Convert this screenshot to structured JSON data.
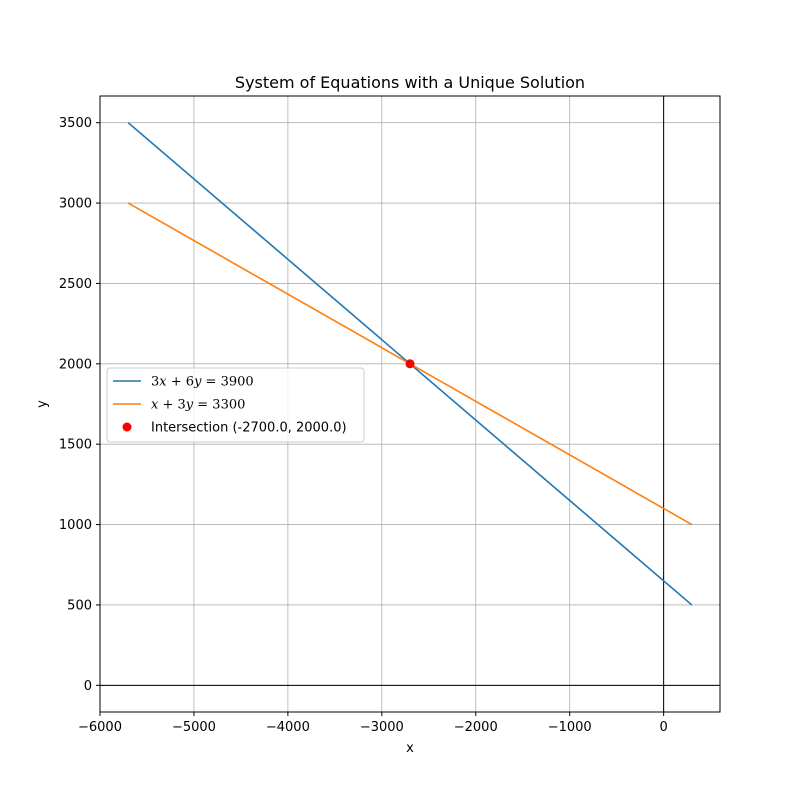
{
  "chart_data": {
    "type": "line",
    "title": "System of Equations with a Unique Solution",
    "xlabel": "x",
    "ylabel": "y",
    "xlim": [
      -6000,
      600
    ],
    "ylim": [
      -166,
      3666
    ],
    "xticks": [
      -6000,
      -5000,
      -4000,
      -3000,
      -2000,
      -1000,
      0
    ],
    "yticks": [
      0,
      500,
      1000,
      1500,
      2000,
      2500,
      3000,
      3500
    ],
    "grid": true,
    "legend_position": "center-left",
    "series": [
      {
        "name": "3x + 6y = 3900",
        "legend_parts": [
          [
            "3",
            "rm"
          ],
          [
            "x",
            "it"
          ],
          [
            " + 6",
            "rm"
          ],
          [
            "y",
            "it"
          ],
          [
            " = 3900",
            "rm"
          ]
        ],
        "color": "#1f77b4",
        "x": [
          -5700,
          300
        ],
        "y": [
          3500,
          500
        ]
      },
      {
        "name": "x + 3y = 3300",
        "legend_parts": [
          [
            "x",
            "it"
          ],
          [
            " + 3",
            "rm"
          ],
          [
            "y",
            "it"
          ],
          [
            " = 3300",
            "rm"
          ]
        ],
        "color": "#ff7f0e",
        "x": [
          -5700,
          300
        ],
        "y": [
          3000,
          1000
        ]
      }
    ],
    "points": [
      {
        "name": "Intersection (-2700.0, 2000.0)",
        "color": "#ff0000",
        "x": -2700,
        "y": 2000
      }
    ],
    "reference_lines": {
      "x": 0,
      "y": 0,
      "color": "#000000"
    }
  }
}
